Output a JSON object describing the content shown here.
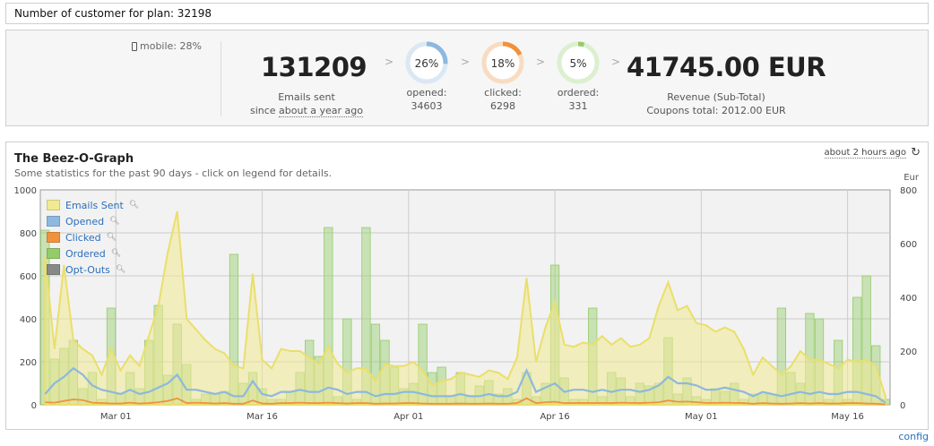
{
  "header": {
    "customer_label": "Number of customer for plan: 32198"
  },
  "stats": {
    "mobile": "mobile: 28%",
    "emails_sent": "131209",
    "emails_sent_label": "Emails sent",
    "since_prefix": "since",
    "since_link": "about a year ago",
    "opened": {
      "pct": "26%",
      "label": "opened:",
      "count": "34603",
      "fraction": 0.26,
      "color": "#8db8df"
    },
    "clicked": {
      "pct": "18%",
      "label": "clicked:",
      "count": "6298",
      "fraction": 0.18,
      "color": "#f0923c"
    },
    "ordered": {
      "pct": "5%",
      "label": "ordered:",
      "count": "331",
      "fraction": 0.05,
      "color": "#94cc6a"
    },
    "chevron": ">",
    "revenue": "41745.00 EUR",
    "revenue_label": "Revenue (Sub-Total)",
    "coupons": "Coupons total: 2012.00 EUR"
  },
  "graph": {
    "title": "The Beez-O-Graph",
    "subtitle": "Some statistics for the past 90 days - click on legend for details.",
    "updated": "about 2 hours ago",
    "right_unit": "Eur",
    "config": "config"
  },
  "colors": {
    "emails": "#f1ea92",
    "opened": "#8db8df",
    "clicked": "#f0923c",
    "ordered": "#94cc6a",
    "optouts": "#888888"
  },
  "chart_data": {
    "type": "area",
    "x_ticks": [
      "Mar 01",
      "Mar 16",
      "Apr 01",
      "Apr 16",
      "May 01",
      "May 16"
    ],
    "y_left": {
      "ylim": [
        0,
        1000
      ],
      "ticks": [
        "0",
        "200",
        "400",
        "600",
        "800",
        "1000"
      ]
    },
    "y_right": {
      "ylim": [
        0,
        800
      ],
      "ticks": [
        "0",
        "200",
        "400",
        "600",
        "800"
      ],
      "label": "Eur"
    },
    "legend": [
      "Emails Sent",
      "Opened",
      "Clicked",
      "Ordered",
      "Opt-Outs"
    ],
    "series": [
      {
        "name": "Emails Sent",
        "axis": "left",
        "values": [
          690,
          260,
          650,
          300,
          260,
          230,
          140,
          260,
          160,
          230,
          180,
          320,
          460,
          710,
          900,
          400,
          350,
          300,
          260,
          240,
          180,
          170,
          610,
          210,
          170,
          260,
          250,
          250,
          220,
          190,
          270,
          190,
          150,
          170,
          170,
          110,
          190,
          180,
          180,
          200,
          160,
          90,
          110,
          120,
          150,
          140,
          130,
          160,
          150,
          120,
          220,
          590,
          200,
          360,
          480,
          280,
          270,
          290,
          280,
          320,
          280,
          310,
          270,
          280,
          310,
          460,
          570,
          440,
          460,
          380,
          370,
          340,
          360,
          340,
          260,
          140,
          220,
          180,
          140,
          180,
          250,
          210,
          210,
          190,
          170,
          210,
          200,
          210,
          180,
          40
        ]
      },
      {
        "name": "Opened",
        "axis": "left",
        "values": [
          50,
          100,
          130,
          170,
          140,
          90,
          70,
          60,
          50,
          70,
          50,
          60,
          80,
          100,
          140,
          70,
          70,
          60,
          50,
          60,
          40,
          40,
          110,
          50,
          40,
          60,
          60,
          70,
          60,
          60,
          80,
          70,
          50,
          60,
          60,
          40,
          50,
          50,
          60,
          60,
          50,
          40,
          40,
          40,
          50,
          40,
          40,
          50,
          40,
          40,
          60,
          160,
          60,
          80,
          100,
          60,
          70,
          70,
          60,
          70,
          60,
          70,
          70,
          60,
          70,
          90,
          130,
          100,
          100,
          90,
          70,
          70,
          80,
          70,
          60,
          40,
          60,
          50,
          40,
          50,
          60,
          50,
          60,
          50,
          50,
          60,
          60,
          50,
          40,
          10
        ]
      },
      {
        "name": "Clicked",
        "axis": "left",
        "values": [
          12,
          10,
          18,
          25,
          22,
          10,
          8,
          6,
          6,
          10,
          6,
          8,
          12,
          18,
          30,
          8,
          10,
          8,
          6,
          8,
          5,
          5,
          20,
          6,
          5,
          8,
          8,
          10,
          8,
          8,
          10,
          8,
          6,
          8,
          8,
          5,
          6,
          6,
          8,
          8,
          6,
          5,
          5,
          5,
          6,
          5,
          5,
          6,
          5,
          5,
          8,
          30,
          8,
          12,
          14,
          8,
          8,
          9,
          8,
          9,
          8,
          10,
          9,
          8,
          10,
          12,
          20,
          14,
          15,
          12,
          9,
          9,
          10,
          9,
          8,
          5,
          8,
          6,
          5,
          6,
          8,
          6,
          8,
          6,
          6,
          8,
          8,
          6,
          5,
          2
        ]
      },
      {
        "name": "Ordered",
        "axis": "right",
        "values": [
          650,
          170,
          210,
          240,
          60,
          120,
          20,
          360,
          40,
          120,
          60,
          240,
          370,
          110,
          300,
          150,
          20,
          40,
          40,
          50,
          560,
          80,
          120,
          60,
          20,
          20,
          50,
          120,
          240,
          180,
          660,
          30,
          320,
          20,
          660,
          300,
          240,
          140,
          60,
          80,
          300,
          120,
          140,
          30,
          120,
          30,
          70,
          90,
          40,
          60,
          20,
          120,
          30,
          80,
          520,
          100,
          20,
          20,
          360,
          30,
          120,
          100,
          30,
          80,
          70,
          80,
          250,
          40,
          100,
          30,
          20,
          60,
          50,
          80,
          20,
          40,
          40,
          40,
          360,
          120,
          80,
          340,
          320,
          20,
          240,
          20,
          400,
          480,
          220,
          20
        ]
      }
    ]
  }
}
